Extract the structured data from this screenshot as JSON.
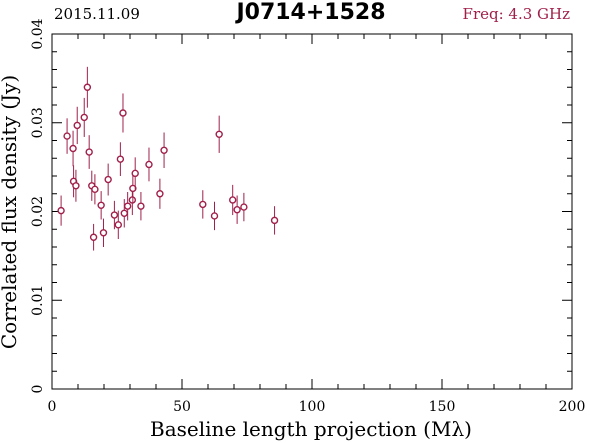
{
  "header": {
    "date": "2015.11.09",
    "source": "J0714+1528",
    "frequency": "Freq: 4.3 GHz"
  },
  "colors": {
    "accent": "#a0204a",
    "axis": "#000000"
  },
  "chart_data": {
    "type": "scatter",
    "title": "J0714+1528",
    "xlabel": "Baseline length projection (Mλ)",
    "ylabel": "Correlated flux density (Jy)",
    "xlim": [
      0,
      200
    ],
    "ylim": [
      0,
      0.04
    ],
    "x_ticks": [
      0,
      50,
      100,
      150,
      200
    ],
    "x_tick_labels": [
      "0",
      "50",
      "100",
      "150",
      "200"
    ],
    "y_ticks": [
      0,
      0.01,
      0.02,
      0.03,
      0.04
    ],
    "y_tick_labels": [
      "0",
      "0.01",
      "0.02",
      "0.03",
      "0.04"
    ],
    "grid": false,
    "series": [
      {
        "points": [
          {
            "x": 3.5,
            "y": 0.0201,
            "err": 0.0017
          },
          {
            "x": 5.8,
            "y": 0.0285,
            "err": 0.002
          },
          {
            "x": 8.1,
            "y": 0.0271,
            "err": 0.002
          },
          {
            "x": 8.3,
            "y": 0.0234,
            "err": 0.0018
          },
          {
            "x": 9.2,
            "y": 0.0229,
            "err": 0.0018
          },
          {
            "x": 9.7,
            "y": 0.0297,
            "err": 0.0021
          },
          {
            "x": 12.4,
            "y": 0.0306,
            "err": 0.0022
          },
          {
            "x": 13.6,
            "y": 0.034,
            "err": 0.0023
          },
          {
            "x": 14.3,
            "y": 0.0267,
            "err": 0.0019
          },
          {
            "x": 15.3,
            "y": 0.0229,
            "err": 0.0017
          },
          {
            "x": 16.0,
            "y": 0.0171,
            "err": 0.0015
          },
          {
            "x": 16.5,
            "y": 0.0225,
            "err": 0.0017
          },
          {
            "x": 18.9,
            "y": 0.0207,
            "err": 0.0016
          },
          {
            "x": 19.8,
            "y": 0.0176,
            "err": 0.0016
          },
          {
            "x": 21.6,
            "y": 0.0236,
            "err": 0.0018
          },
          {
            "x": 24.0,
            "y": 0.0196,
            "err": 0.0016
          },
          {
            "x": 25.5,
            "y": 0.0185,
            "err": 0.0016
          },
          {
            "x": 26.3,
            "y": 0.0259,
            "err": 0.0019
          },
          {
            "x": 27.3,
            "y": 0.0311,
            "err": 0.0022
          },
          {
            "x": 27.8,
            "y": 0.0198,
            "err": 0.0016
          },
          {
            "x": 29.1,
            "y": 0.0206,
            "err": 0.0016
          },
          {
            "x": 30.9,
            "y": 0.0213,
            "err": 0.0017
          },
          {
            "x": 31.1,
            "y": 0.0226,
            "err": 0.0017
          },
          {
            "x": 32.0,
            "y": 0.0243,
            "err": 0.0018
          },
          {
            "x": 34.2,
            "y": 0.0206,
            "err": 0.0016
          },
          {
            "x": 37.3,
            "y": 0.0253,
            "err": 0.0019
          },
          {
            "x": 41.5,
            "y": 0.022,
            "err": 0.0017
          },
          {
            "x": 43.1,
            "y": 0.0269,
            "err": 0.002
          },
          {
            "x": 58.0,
            "y": 0.0208,
            "err": 0.0016
          },
          {
            "x": 62.5,
            "y": 0.0195,
            "err": 0.0016
          },
          {
            "x": 64.3,
            "y": 0.0287,
            "err": 0.0021
          },
          {
            "x": 69.5,
            "y": 0.0213,
            "err": 0.0017
          },
          {
            "x": 71.2,
            "y": 0.0202,
            "err": 0.0016
          },
          {
            "x": 73.8,
            "y": 0.0205,
            "err": 0.0016
          },
          {
            "x": 85.6,
            "y": 0.019,
            "err": 0.0016
          }
        ]
      }
    ]
  }
}
